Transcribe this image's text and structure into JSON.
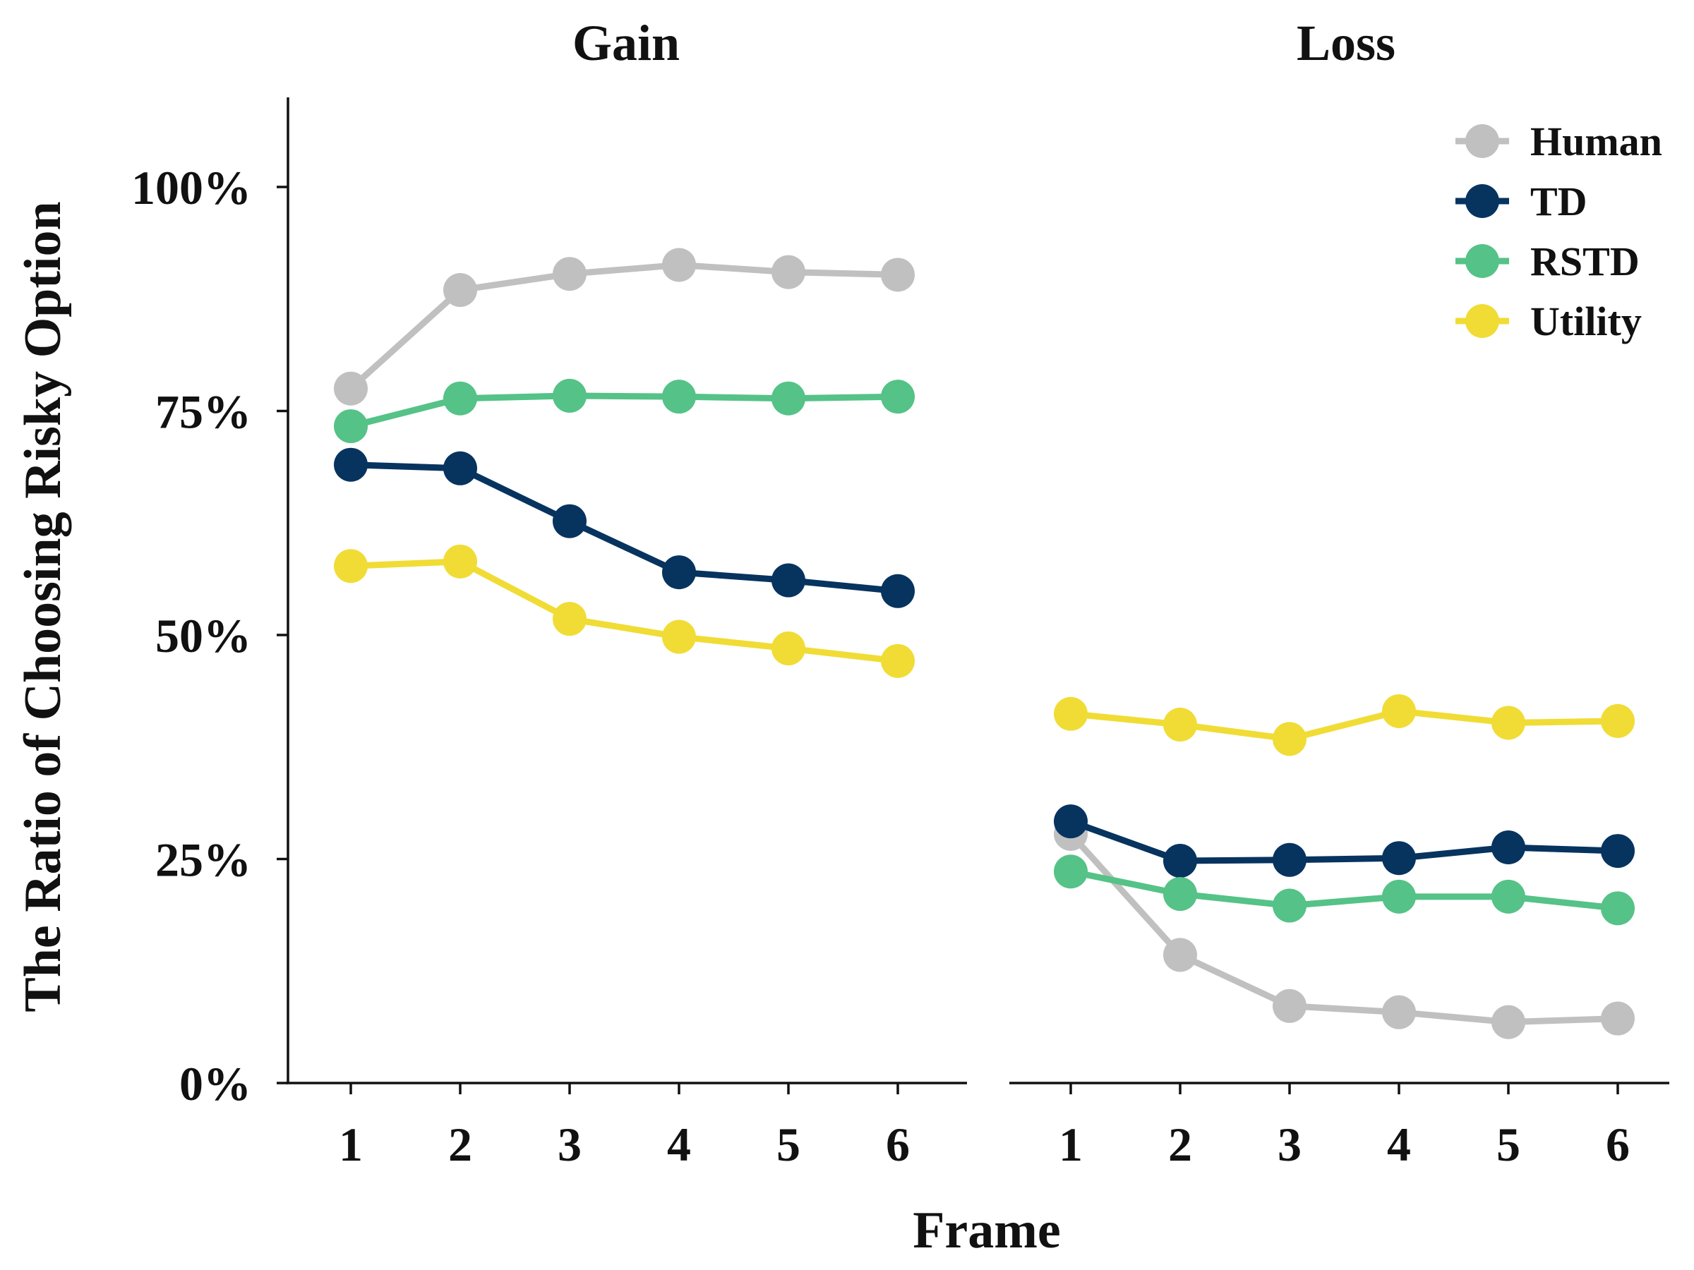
{
  "chart_data": {
    "type": "line",
    "ylabel": "The Ratio of Choosing Risky Option",
    "xlabel": "Frame",
    "ylim": [
      0,
      110
    ],
    "yticks": [
      0,
      25,
      50,
      75,
      100
    ],
    "ytick_labels": [
      "0%",
      "25%",
      "50%",
      "75%",
      "100%"
    ],
    "x": [
      1,
      2,
      3,
      4,
      5,
      6
    ],
    "xtick_labels": [
      "1",
      "2",
      "3",
      "4",
      "5",
      "6"
    ],
    "legend_position": "top-right",
    "grid": false,
    "series_styles": [
      {
        "name": "Human",
        "color": "#c0c0c0"
      },
      {
        "name": "TD",
        "color": "#07335f"
      },
      {
        "name": "RSTD",
        "color": "#55c287"
      },
      {
        "name": "Utility",
        "color": "#f0dc35"
      }
    ],
    "panels": [
      {
        "title": "Gain",
        "series": [
          {
            "name": "Human",
            "values": [
              77.5,
              88.5,
              90.3,
              91.3,
              90.5,
              90.2
            ]
          },
          {
            "name": "TD",
            "values": [
              69.0,
              68.6,
              62.7,
              57.0,
              56.1,
              54.9
            ]
          },
          {
            "name": "RSTD",
            "values": [
              73.3,
              76.4,
              76.7,
              76.6,
              76.4,
              76.6
            ]
          },
          {
            "name": "Utility",
            "values": [
              57.7,
              58.2,
              51.8,
              49.8,
              48.5,
              47.1
            ]
          }
        ]
      },
      {
        "title": "Loss",
        "series": [
          {
            "name": "Human",
            "values": [
              27.8,
              14.3,
              8.6,
              7.9,
              6.8,
              7.2
            ]
          },
          {
            "name": "TD",
            "values": [
              29.2,
              24.8,
              24.9,
              25.1,
              26.3,
              25.9
            ]
          },
          {
            "name": "RSTD",
            "values": [
              23.6,
              21.1,
              19.8,
              20.8,
              20.8,
              19.5
            ]
          },
          {
            "name": "Utility",
            "values": [
              41.2,
              40.0,
              38.4,
              41.5,
              40.2,
              40.4
            ]
          }
        ]
      }
    ]
  }
}
